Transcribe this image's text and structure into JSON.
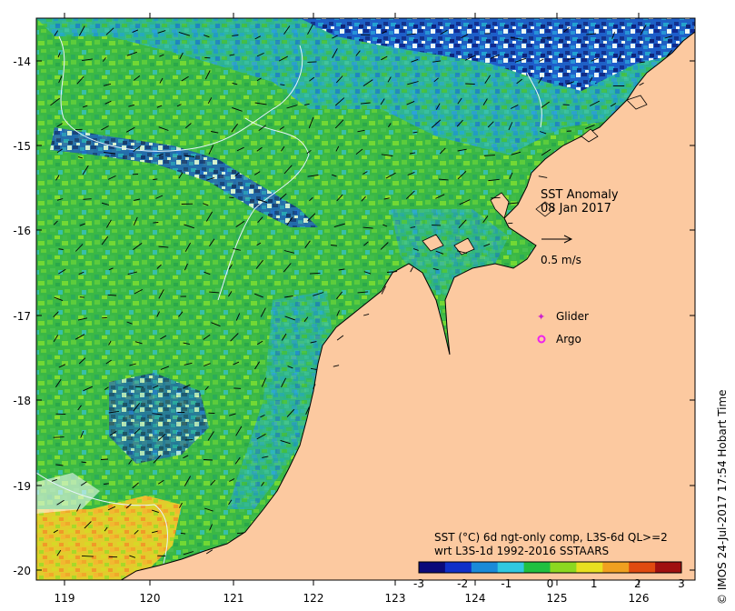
{
  "title": {
    "line1": "SST Anomaly",
    "line2": "08 Jan 2017"
  },
  "vector_scale": {
    "label": "0.5 m/s"
  },
  "legend": {
    "glider": "Glider",
    "argo": "Argo",
    "glider_color": "#cc22cc",
    "argo_color": "#ee22ee"
  },
  "colorbar": {
    "line1": "SST (°C) 6d ngt-only comp, L3S-6d QL>=2",
    "line2": "wrt L3S-1d 1992-2016 SSTAARS",
    "ticks": [
      "-3",
      "-2",
      "-1",
      "0",
      "1",
      "2",
      "3"
    ],
    "tick_values": [
      -3,
      -2,
      -1,
      0,
      1,
      2,
      3
    ],
    "range": [
      -3,
      3
    ],
    "colors": [
      "#0a0a7a",
      "#1030c8",
      "#1a8ad8",
      "#30c8e0",
      "#20c040",
      "#8cd820",
      "#e8e020",
      "#f0a020",
      "#e04a10",
      "#a01010"
    ]
  },
  "axes": {
    "lat_labels": [
      "-14",
      "-15",
      "-16",
      "-17",
      "-18",
      "-19",
      "-20"
    ],
    "lat_values": [
      -14,
      -15,
      -16,
      -17,
      -18,
      -19,
      -20
    ],
    "lon_labels": [
      "119",
      "120",
      "121",
      "122",
      "123",
      "124",
      "125",
      "126"
    ],
    "lon_values": [
      119,
      120,
      121,
      122,
      123,
      124,
      125,
      126
    ],
    "lon_range": [
      118.65,
      126.68
    ],
    "lat_range": [
      -20.12,
      -13.5
    ]
  },
  "credit": "© IMOS 24-Jul-2017 17:54 Hobart Time",
  "colors": {
    "land": "#fcc9a0",
    "ocean_base": "#34b24a",
    "ocean_light": "#6cd23a",
    "ocean_cyan": "#3cc2c8",
    "ocean_blue": "#1d4fd0",
    "ocean_navy": "#0c1680",
    "ocean_warm": "#e8d028"
  }
}
